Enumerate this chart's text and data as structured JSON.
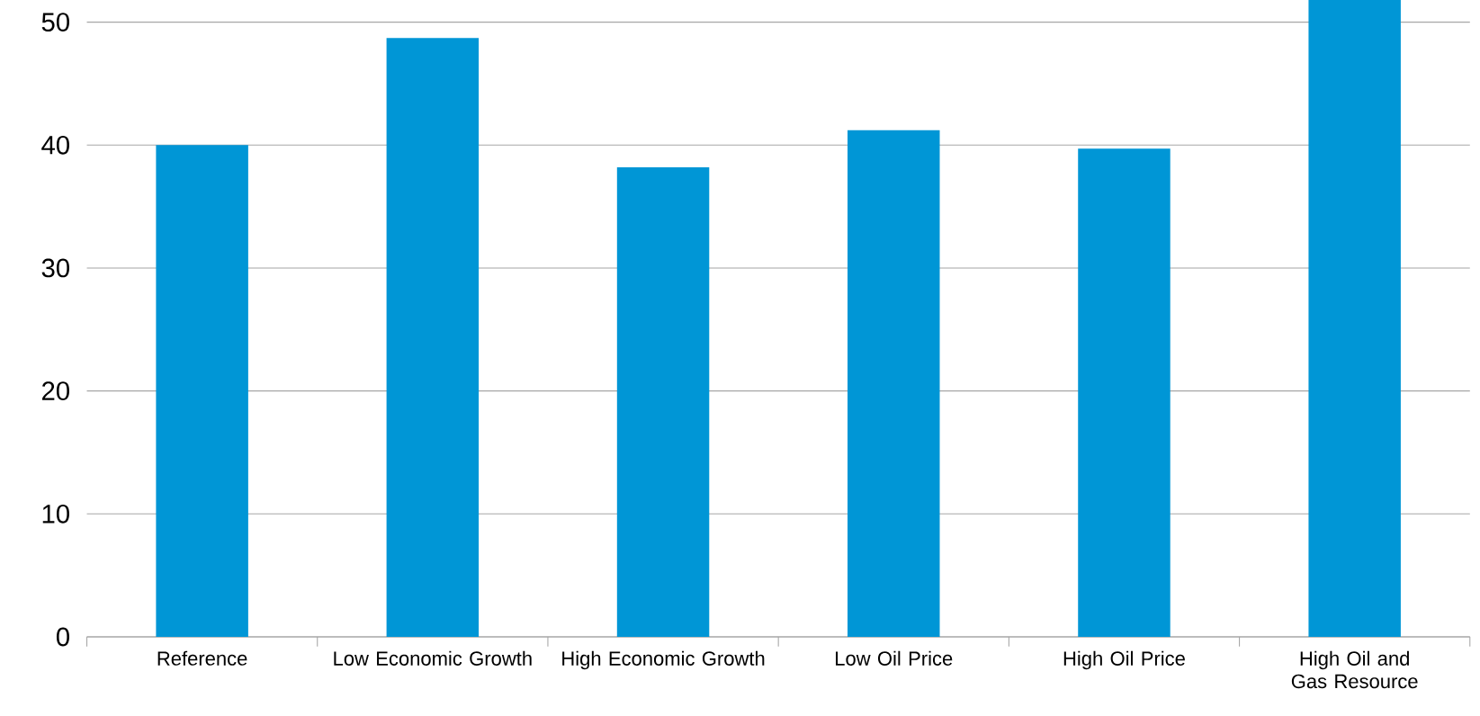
{
  "chart_data": {
    "type": "bar",
    "categories": [
      "Reference",
      "Low Economic Growth",
      "High Economic Growth",
      "Low Oil Price",
      "High Oil Price",
      "High Oil and Gas Resource"
    ],
    "values": [
      40.0,
      48.7,
      38.2,
      41.2,
      39.7,
      51.8
    ],
    "color": "#0096d6",
    "ylim": [
      0,
      51.8
    ],
    "yticks": [
      0,
      10,
      20,
      30,
      40,
      50
    ],
    "grid": "y"
  }
}
